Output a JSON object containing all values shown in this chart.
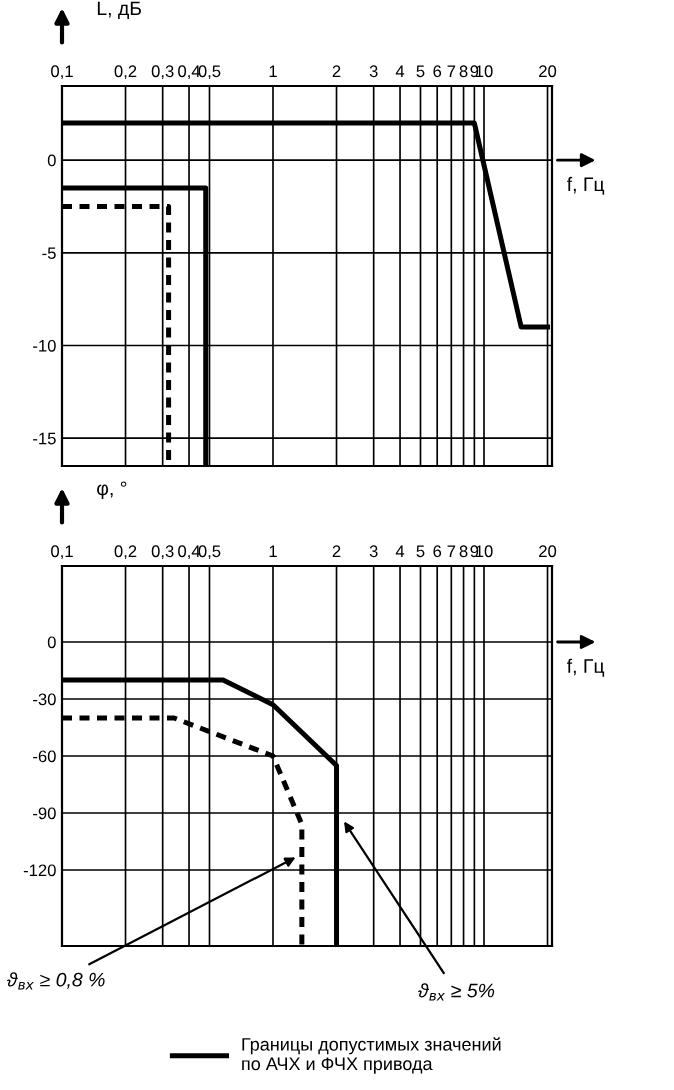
{
  "chart_data": [
    {
      "type": "line",
      "xlabel": "f, Гц",
      "ylabel": "L, дБ",
      "log": "x",
      "grid": true,
      "tick_labels": "xy",
      "xlim": [
        0.1,
        21
      ],
      "xticks": [
        {
          "value": 0.1,
          "label": "0,1"
        },
        {
          "value": 0.2,
          "label": "0,2"
        },
        {
          "value": 0.3,
          "label": "0,3"
        },
        {
          "value": 0.4,
          "label": "0,4"
        },
        {
          "value": 0.5,
          "label": "0,5"
        },
        1,
        2,
        3,
        4,
        5,
        6,
        7,
        8,
        9,
        10,
        20
      ],
      "ylim": [
        -16.5,
        4
      ],
      "yticks": [
        -15,
        -10,
        -5,
        0
      ],
      "series": [
        {
          "color": "#000000",
          "line_style": "solid",
          "x": [
            0.1,
            9,
            15,
            20
          ],
          "values": [
            2,
            2,
            -9,
            -9
          ]
        },
        {
          "color": "#000000",
          "line_style": "solid",
          "x": [
            0.1,
            0.48,
            0.48
          ],
          "values": [
            -1.5,
            -1.5,
            -16.5
          ]
        },
        {
          "color": "#000000",
          "line_style": "dashed",
          "x": [
            0.1,
            0.32,
            0.32
          ],
          "values": [
            -2.5,
            -2.5,
            -16.5
          ]
        }
      ]
    },
    {
      "type": "line",
      "xlabel": "f, Гц",
      "ylabel": "φ, °",
      "log": "x",
      "grid": true,
      "legend": "bottom",
      "xlim": [
        0.1,
        21
      ],
      "xticks": [
        {
          "value": 0.1,
          "label": "0,1"
        },
        {
          "value": 0.2,
          "label": "0,2"
        },
        {
          "value": 0.3,
          "label": "0,3"
        },
        {
          "value": 0.4,
          "label": "0,4"
        },
        {
          "value": 0.5,
          "label": "0,5"
        },
        1,
        2,
        3,
        4,
        5,
        6,
        7,
        8,
        9,
        10,
        20
      ],
      "ylim": [
        -160,
        40
      ],
      "yticks": [
        -120,
        -90,
        -60,
        -30,
        0
      ],
      "series": [
        {
          "name": "Границы допустимых значений\nпо АЧХ и ФЧХ привода",
          "color": "#000000",
          "line_style": "solid",
          "x": [
            0.1,
            0.58,
            1,
            2,
            2
          ],
          "values": [
            -20,
            -20,
            -33,
            -65,
            -160
          ]
        },
        {
          "color": "#000000",
          "line_style": "dashed",
          "x": [
            0.1,
            0.34,
            1,
            1.37,
            1.37
          ],
          "values": [
            -40,
            -40,
            -60,
            -96,
            -160
          ]
        }
      ],
      "annotations": [
        {
          "text": "ϑ$_{вх}$ ≥ 0,8 %",
          "x": 1.35,
          "y": -112
        },
        {
          "text": "ϑ$_{вх}$ ≥ 5%",
          "x": 2.1,
          "y": -92
        }
      ]
    }
  ]
}
